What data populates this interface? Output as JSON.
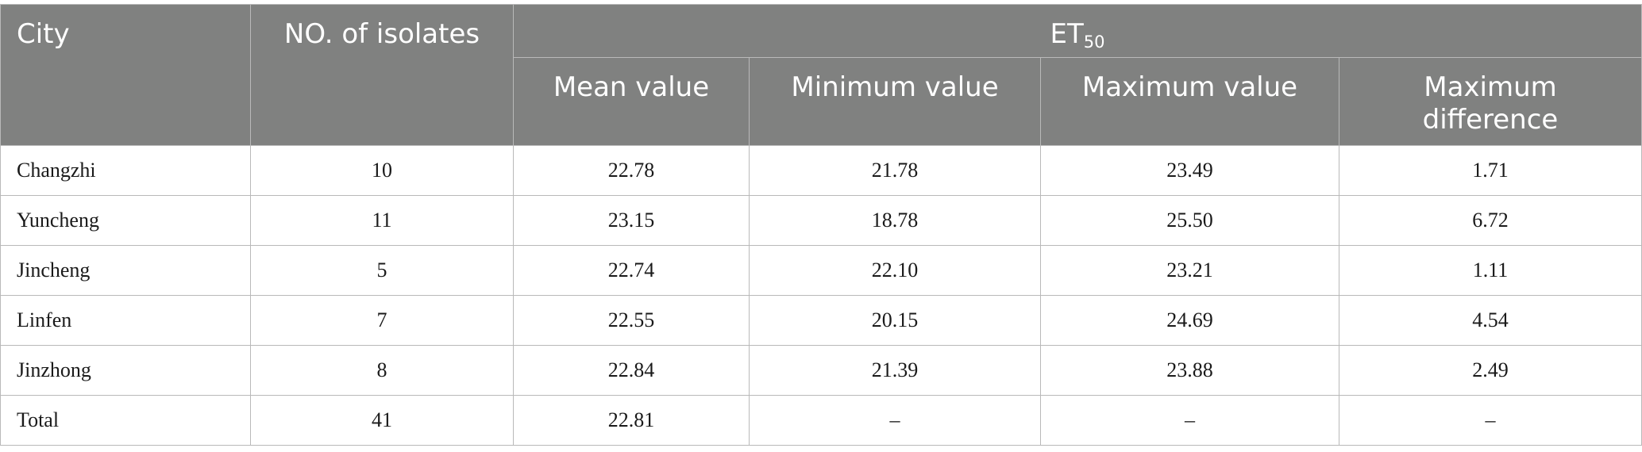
{
  "header": {
    "city": "City",
    "isolates": "NO. of isolates",
    "et_main": "ET",
    "et_sub": "50",
    "mean": "Mean value",
    "minimum": "Minimum value",
    "maximum": "Maximum value",
    "max_diff_line1": "Maximum",
    "max_diff_line2": "difference"
  },
  "rows": [
    {
      "city": "Changzhi",
      "isolates": "10",
      "mean": "22.78",
      "min": "21.78",
      "max": "23.49",
      "diff": "1.71"
    },
    {
      "city": "Yuncheng",
      "isolates": "11",
      "mean": "23.15",
      "min": "18.78",
      "max": "25.50",
      "diff": "6.72"
    },
    {
      "city": "Jincheng",
      "isolates": "5",
      "mean": "22.74",
      "min": "22.10",
      "max": "23.21",
      "diff": "1.11"
    },
    {
      "city": "Linfen",
      "isolates": "7",
      "mean": "22.55",
      "min": "20.15",
      "max": "24.69",
      "diff": "4.54"
    },
    {
      "city": "Jinzhong",
      "isolates": "8",
      "mean": "22.84",
      "min": "21.39",
      "max": "23.88",
      "diff": "2.49"
    },
    {
      "city": "Total",
      "isolates": "41",
      "mean": "22.81",
      "min": "–",
      "max": "–",
      "diff": "–"
    }
  ]
}
